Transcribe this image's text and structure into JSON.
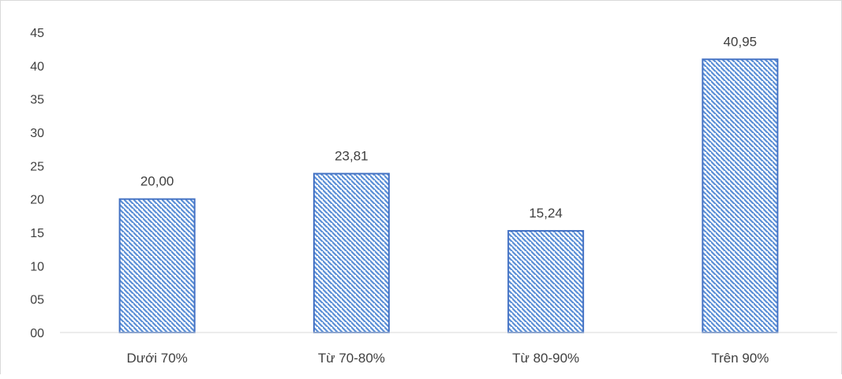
{
  "chart_data": {
    "type": "bar",
    "title": "",
    "xlabel": "",
    "ylabel": "",
    "categories": [
      "Dưới 70%",
      "Từ 70-80%",
      "Từ 80-90%",
      "Trên 90%"
    ],
    "values": [
      20.0,
      23.81,
      15.24,
      40.95
    ],
    "data_labels": [
      "20,00",
      "23,81",
      "15,24",
      "40,95"
    ],
    "yticks": [
      "00",
      "05",
      "10",
      "15",
      "20",
      "25",
      "30",
      "35",
      "40",
      "45"
    ],
    "ylim": [
      0,
      45
    ],
    "grid": false,
    "legend": "none",
    "colors": {
      "bar_stroke": "#4472c4",
      "hatch": "#5b8fd6",
      "bar_background": "#ffffff",
      "text": "#404040",
      "axis": "#d9d9d9"
    }
  }
}
